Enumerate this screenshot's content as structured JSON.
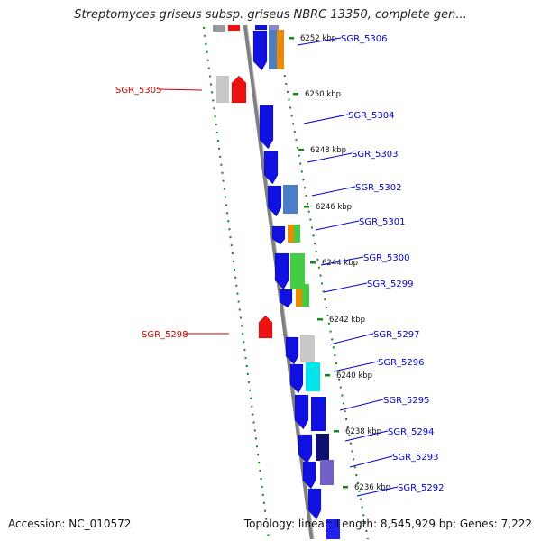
{
  "title": "Streptomyces griseus subsp. griseus NBRC 13350, complete gen...",
  "footer": {
    "accession": "Accession: NC_010572",
    "topology": "Topology: linear; Length: 8,545,929 bp; Genes: 7,222"
  },
  "scale_ticks": [
    {
      "label": "6252 kbp"
    },
    {
      "label": "6250 kbp"
    },
    {
      "label": "6248 kbp"
    },
    {
      "label": "6246 kbp"
    },
    {
      "label": "6244 kbp"
    },
    {
      "label": "6242 kbp"
    },
    {
      "label": "6240 kbp"
    },
    {
      "label": "6238 kbp"
    },
    {
      "label": "6236 kbp"
    }
  ],
  "genes": [
    {
      "label": "SGR_5306",
      "strand": "forward",
      "color": "#0000cc"
    },
    {
      "label": "SGR_5305",
      "strand": "reverse",
      "color": "#cc0000"
    },
    {
      "label": "SGR_5304",
      "strand": "forward",
      "color": "#0000cc"
    },
    {
      "label": "SGR_5303",
      "strand": "forward",
      "color": "#0000cc"
    },
    {
      "label": "SGR_5302",
      "strand": "forward",
      "color": "#0000cc"
    },
    {
      "label": "SGR_5301",
      "strand": "forward",
      "color": "#0000cc"
    },
    {
      "label": "SGR_5300",
      "strand": "forward",
      "color": "#0000cc"
    },
    {
      "label": "SGR_5299",
      "strand": "forward",
      "color": "#0000cc"
    },
    {
      "label": "SGR_5298",
      "strand": "reverse",
      "color": "#cc0000"
    },
    {
      "label": "SGR_5297",
      "strand": "forward",
      "color": "#0000cc"
    },
    {
      "label": "SGR_5296",
      "strand": "forward",
      "color": "#0000cc"
    },
    {
      "label": "SGR_5295",
      "strand": "forward",
      "color": "#0000cc"
    },
    {
      "label": "SGR_5294",
      "strand": "forward",
      "color": "#0000cc"
    },
    {
      "label": "SGR_5293",
      "strand": "forward",
      "color": "#0000cc"
    },
    {
      "label": "SGR_5292",
      "strand": "forward",
      "color": "#0000cc"
    }
  ],
  "colors": {
    "forward_gene": "#1010e0",
    "reverse_gene": "#ee1111",
    "backbone": "#808080",
    "scale": "#118811",
    "forward_label": "#0000cc",
    "reverse_label": "#cc0000"
  }
}
